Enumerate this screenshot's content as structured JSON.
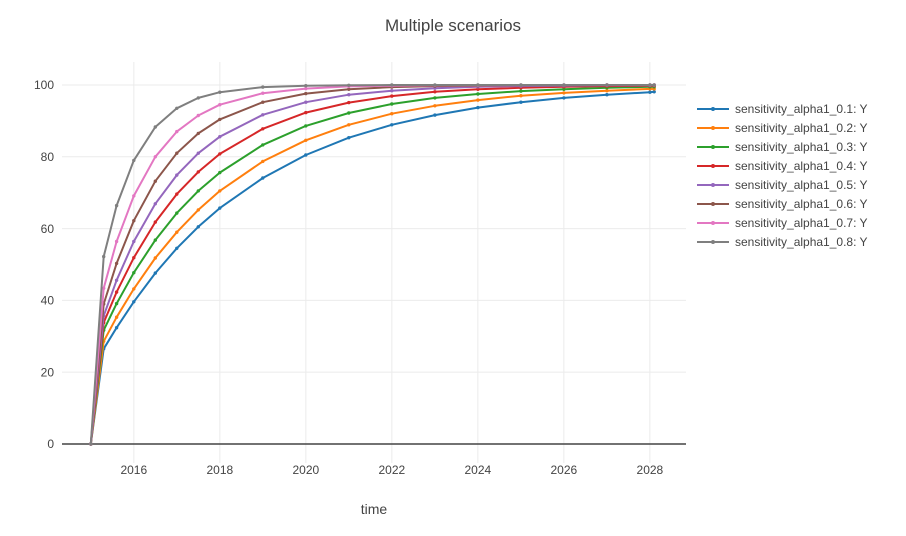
{
  "title": "Multiple scenarios",
  "colors": {
    "background": "#ffffff",
    "grid": "#ebebeb",
    "zeroline": "#444444",
    "axis_text": "#444444",
    "title_text": "#444444"
  },
  "chart_data": {
    "type": "line",
    "title": "Multiple scenarios",
    "xlabel": "time",
    "ylabel": "",
    "grid": true,
    "legend_position": "right",
    "zeroline": true,
    "x_ticks": [
      2016,
      2018,
      2020,
      2022,
      2024,
      2026,
      2028
    ],
    "y_ticks": [
      0,
      20,
      40,
      60,
      80,
      100
    ],
    "x_range": [
      2014.33,
      2028.84
    ],
    "y_range": [
      -5.3,
      106.4
    ],
    "x": [
      2015,
      2015.3,
      2015.6,
      2016,
      2016.5,
      2017,
      2017.5,
      2018,
      2019,
      2020,
      2021,
      2022,
      2023,
      2024,
      2025,
      2026,
      2027,
      2028,
      2028.1
    ],
    "series": [
      {
        "name": "sensitivity_alpha1_0.1: Y",
        "color": "#1f77b4",
        "values": [
          0,
          26.5,
          32.4,
          39.6,
          47.6,
          54.5,
          60.5,
          65.7,
          74.1,
          80.5,
          85.3,
          88.9,
          91.6,
          93.7,
          95.2,
          96.4,
          97.3,
          98.0,
          98.1
        ]
      },
      {
        "name": "sensitivity_alpha1_0.2: Y",
        "color": "#ff7f0e",
        "values": [
          0,
          28.6,
          35.3,
          43.2,
          51.8,
          59.0,
          65.2,
          70.5,
          78.7,
          84.6,
          88.9,
          92.0,
          94.2,
          95.8,
          97.0,
          97.8,
          98.4,
          98.9,
          98.9
        ]
      },
      {
        "name": "sensitivity_alpha1_0.3: Y",
        "color": "#2ca02c",
        "values": [
          0,
          31.7,
          39.1,
          47.7,
          56.8,
          64.3,
          70.5,
          75.6,
          83.3,
          88.6,
          92.2,
          94.7,
          96.4,
          97.5,
          98.3,
          98.8,
          99.2,
          99.5,
          99.5
        ]
      },
      {
        "name": "sensitivity_alpha1_0.4: Y",
        "color": "#d62728",
        "values": [
          0,
          33.8,
          42.3,
          51.9,
          61.8,
          69.6,
          75.8,
          80.8,
          87.8,
          92.3,
          95.1,
          96.9,
          98.1,
          98.8,
          99.2,
          99.5,
          99.7,
          99.8,
          99.8
        ]
      },
      {
        "name": "sensitivity_alpha1_0.5: Y",
        "color": "#9467bd",
        "values": [
          0,
          35.7,
          45.6,
          56.4,
          66.9,
          74.9,
          81.0,
          85.6,
          91.7,
          95.2,
          97.3,
          98.4,
          99.1,
          99.5,
          99.7,
          99.8,
          99.9,
          99.9,
          99.9
        ]
      },
      {
        "name": "sensitivity_alpha1_0.6: Y",
        "color": "#8c564b",
        "values": [
          0,
          39.0,
          50.3,
          62.2,
          73.2,
          81.0,
          86.5,
          90.4,
          95.2,
          97.6,
          98.8,
          99.4,
          99.7,
          99.8,
          99.9,
          99.9,
          100,
          100,
          100
        ]
      },
      {
        "name": "sensitivity_alpha1_0.7: Y",
        "color": "#e377c2",
        "values": [
          0,
          43.4,
          56.4,
          69.1,
          80.0,
          87.0,
          91.5,
          94.5,
          97.7,
          99.0,
          99.6,
          99.8,
          99.9,
          99.9,
          100,
          100,
          100,
          100,
          100
        ]
      },
      {
        "name": "sensitivity_alpha1_0.8: Y",
        "color": "#7f7f7f",
        "values": [
          0,
          52.2,
          66.4,
          79.0,
          88.3,
          93.5,
          96.4,
          98.0,
          99.4,
          99.8,
          99.9,
          100,
          100,
          100,
          100,
          100,
          100,
          100,
          100
        ]
      }
    ]
  }
}
